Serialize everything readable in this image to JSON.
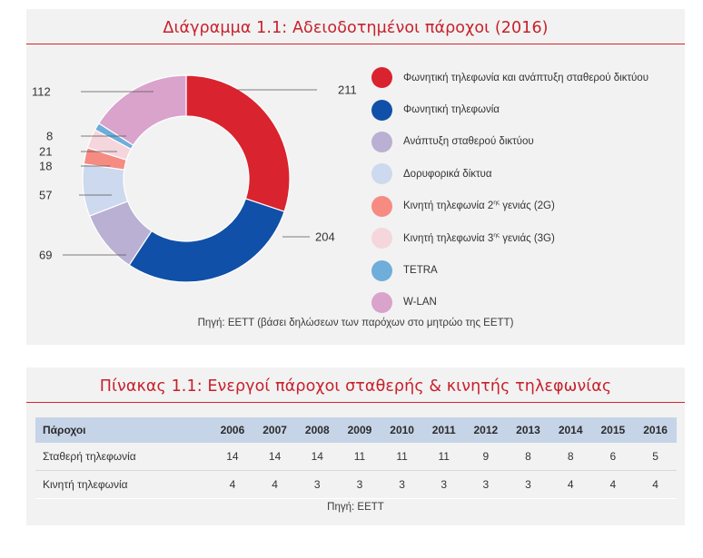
{
  "chart_panel": {
    "title": "Διάγραμμα 1.1: Αδειοδοτημένοι πάροχοι (2016)",
    "source": "Πηγή: ΕΕΤΤ (βάσει δηλώσεων των παρόχων στο μητρώο της ΕΕΤΤ)"
  },
  "chart_data": {
    "type": "pie",
    "title": "Διάγραμμα 1.1: Αδειοδοτημένοι πάροχοι (2016)",
    "categories": [
      "Φωνητική τηλεφωνία και ανάπτυξη σταθερού δικτύου",
      "Φωνητική τηλεφωνία",
      "Ανάπτυξη σταθερού δικτύου",
      "Δορυφορικά δίκτυα",
      "Κινητή τηλεφωνία 2ης γενιάς (2G)",
      "Κινητή τηλεφωνία 3ης γενιάς (3G)",
      "TETRA",
      "W-LAN"
    ],
    "values": [
      211,
      204,
      69,
      57,
      18,
      21,
      8,
      112
    ],
    "value_labels": [
      "211",
      "204",
      "69",
      "57",
      "18",
      "21",
      "8",
      "112"
    ],
    "colors": [
      "#d9232e",
      "#1050a8",
      "#b9b0d3",
      "#ccd9ee",
      "#f68b82",
      "#f5d6dd",
      "#6faddb",
      "#d9a3cc"
    ],
    "donut": true,
    "legend_position": "right"
  },
  "legend": [
    {
      "pre": "Φωνητική τηλεφωνία και ανάπτυξη σταθερού δικτύου",
      "sup": "",
      "post": ""
    },
    {
      "pre": "Φωνητική τηλεφωνία",
      "sup": "",
      "post": ""
    },
    {
      "pre": "Ανάπτυξη σταθερού δικτύου",
      "sup": "",
      "post": ""
    },
    {
      "pre": "Δορυφορικά δίκτυα",
      "sup": "",
      "post": ""
    },
    {
      "pre": "Κινητή τηλεφωνία 2",
      "sup": "ης",
      "post": " γενιάς (2G)"
    },
    {
      "pre": "Κινητή τηλεφωνία 3",
      "sup": "ης",
      "post": " γενιάς (3G)"
    },
    {
      "pre": "TETRA",
      "sup": "",
      "post": ""
    },
    {
      "pre": "W-LAN",
      "sup": "",
      "post": ""
    }
  ],
  "table_panel": {
    "title": "Πίνακας 1.1: Ενεργοί πάροχοι σταθερής & κινητής τηλεφωνίας",
    "source": "Πηγή: ΕΕΤΤ",
    "header_label": "Πάροχοι",
    "years": [
      "2006",
      "2007",
      "2008",
      "2009",
      "2010",
      "2011",
      "2012",
      "2013",
      "2014",
      "2015",
      "2016"
    ],
    "rows": [
      {
        "label": "Σταθερή τηλεφωνία",
        "values": [
          "14",
          "14",
          "14",
          "11",
          "11",
          "11",
          "9",
          "8",
          "8",
          "6",
          "5"
        ]
      },
      {
        "label": "Κινητή τηλεφωνία",
        "values": [
          "4",
          "4",
          "3",
          "3",
          "3",
          "3",
          "3",
          "3",
          "4",
          "4",
          "4"
        ]
      }
    ]
  }
}
